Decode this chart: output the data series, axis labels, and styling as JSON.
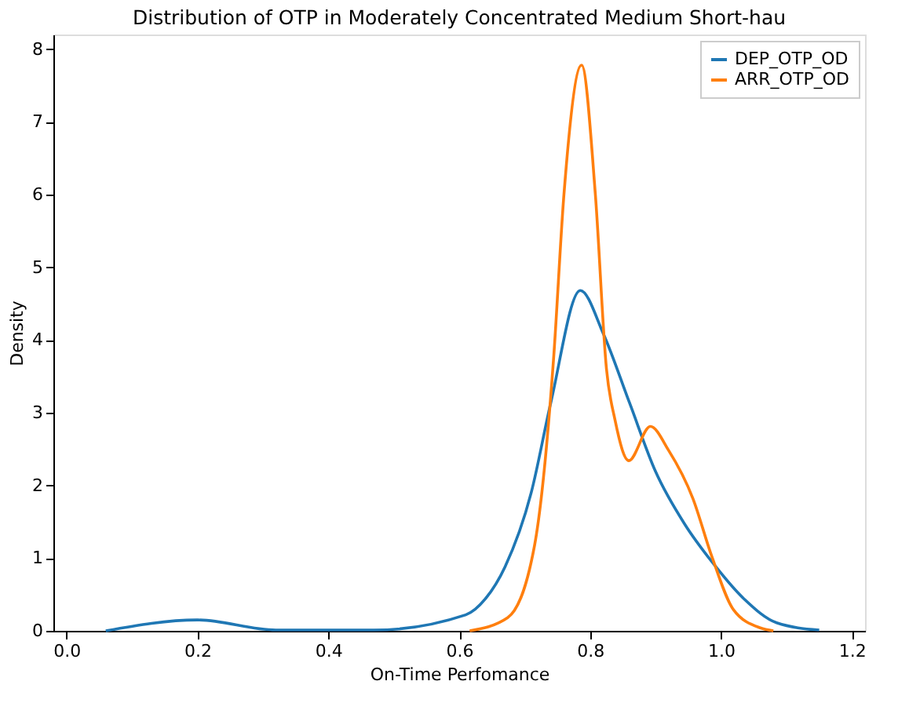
{
  "chart_data": {
    "type": "line",
    "title": "Distribution of OTP in Moderately Concentrated Medium Short-hau",
    "xlabel": "On-Time Perfomance",
    "ylabel": "Density",
    "xlim": [
      -0.02,
      1.22
    ],
    "xticks": [
      {
        "value": 0,
        "label": "0.0"
      },
      0.2,
      0.4,
      0.6,
      0.8,
      {
        "value": 1,
        "label": "1.0"
      },
      1.2
    ],
    "ylim": [
      0,
      8.2
    ],
    "yticks": [
      0,
      1,
      2,
      3,
      4,
      5,
      6,
      7,
      8
    ],
    "grid": false,
    "legend": "top right",
    "series": [
      {
        "name": "DEP_OTP_OD",
        "color": "#1f77b4",
        "x": [
          0.06,
          0.2,
          0.32,
          0.47,
          0.61,
          0.64,
          0.67,
          0.71,
          0.74,
          0.785,
          0.82,
          0.86,
          0.9,
          0.945,
          0.986,
          1.035,
          1.085,
          1.15
        ],
        "values": [
          0,
          0.15,
          0.01,
          0.01,
          0.22,
          0.44,
          0.88,
          1.9,
          3.14,
          4.68,
          4.09,
          3.14,
          2.19,
          1.46,
          0.95,
          0.44,
          0.11,
          0.01
        ]
      },
      {
        "name": "ARR_OTP_OD",
        "color": "#ff7f0e",
        "x": [
          0.616,
          0.674,
          0.715,
          0.744,
          0.76,
          0.787,
          0.808,
          0.825,
          0.838,
          0.859,
          0.892,
          0.92,
          0.957,
          0.986,
          1.019,
          1.06,
          1.08
        ],
        "values": [
          0,
          0.18,
          1.17,
          3.72,
          6.0,
          7.78,
          6.0,
          3.6,
          2.9,
          2.34,
          2.81,
          2.48,
          1.82,
          1.02,
          0.29,
          0.04,
          0
        ]
      }
    ]
  }
}
